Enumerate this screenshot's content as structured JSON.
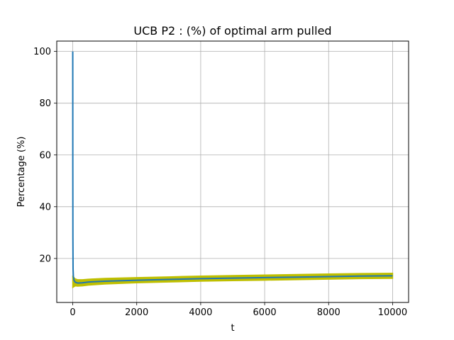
{
  "chart_data": {
    "type": "line",
    "title": "UCB P2 : (%) of optimal arm pulled",
    "xlabel": "t",
    "ylabel": "Percentage (%)",
    "xlim": [
      -500,
      10500
    ],
    "ylim": [
      3,
      104
    ],
    "xticks": [
      0,
      2000,
      4000,
      6000,
      8000,
      10000
    ],
    "xtick_labels": [
      "0",
      "2000",
      "4000",
      "6000",
      "8000",
      "10000"
    ],
    "yticks": [
      20,
      40,
      60,
      80,
      100
    ],
    "ytick_labels": [
      "20",
      "40",
      "60",
      "80",
      "100"
    ],
    "grid": true,
    "legend": "none",
    "series": [
      {
        "color": "#1f77b4",
        "x": [
          0,
          2,
          5,
          10,
          20,
          40,
          80,
          150,
          300,
          500,
          1000,
          2000,
          3000,
          4000,
          5000,
          6000,
          7000,
          8000,
          9000,
          10000
        ],
        "y": [
          100,
          55,
          28,
          16,
          13,
          11.5,
          10.8,
          10.5,
          10.6,
          10.9,
          11.2,
          11.6,
          11.9,
          12.2,
          12.4,
          12.6,
          12.8,
          13.0,
          13.2,
          13.3
        ]
      }
    ],
    "band": {
      "color": "#bfbf00",
      "x": [
        0,
        40,
        80,
        150,
        300,
        500,
        1000,
        2000,
        3000,
        4000,
        5000,
        6000,
        7000,
        8000,
        9000,
        10000
      ],
      "upper": [
        13.0,
        12.6,
        12.1,
        11.8,
        11.8,
        12.0,
        12.3,
        12.6,
        12.9,
        13.2,
        13.4,
        13.6,
        13.8,
        14.0,
        14.2,
        14.3
      ],
      "lower": [
        8.8,
        9.1,
        9.4,
        9.3,
        9.4,
        9.7,
        10.1,
        10.6,
        10.9,
        11.2,
        11.4,
        11.6,
        11.8,
        12.0,
        12.2,
        12.3
      ]
    }
  }
}
